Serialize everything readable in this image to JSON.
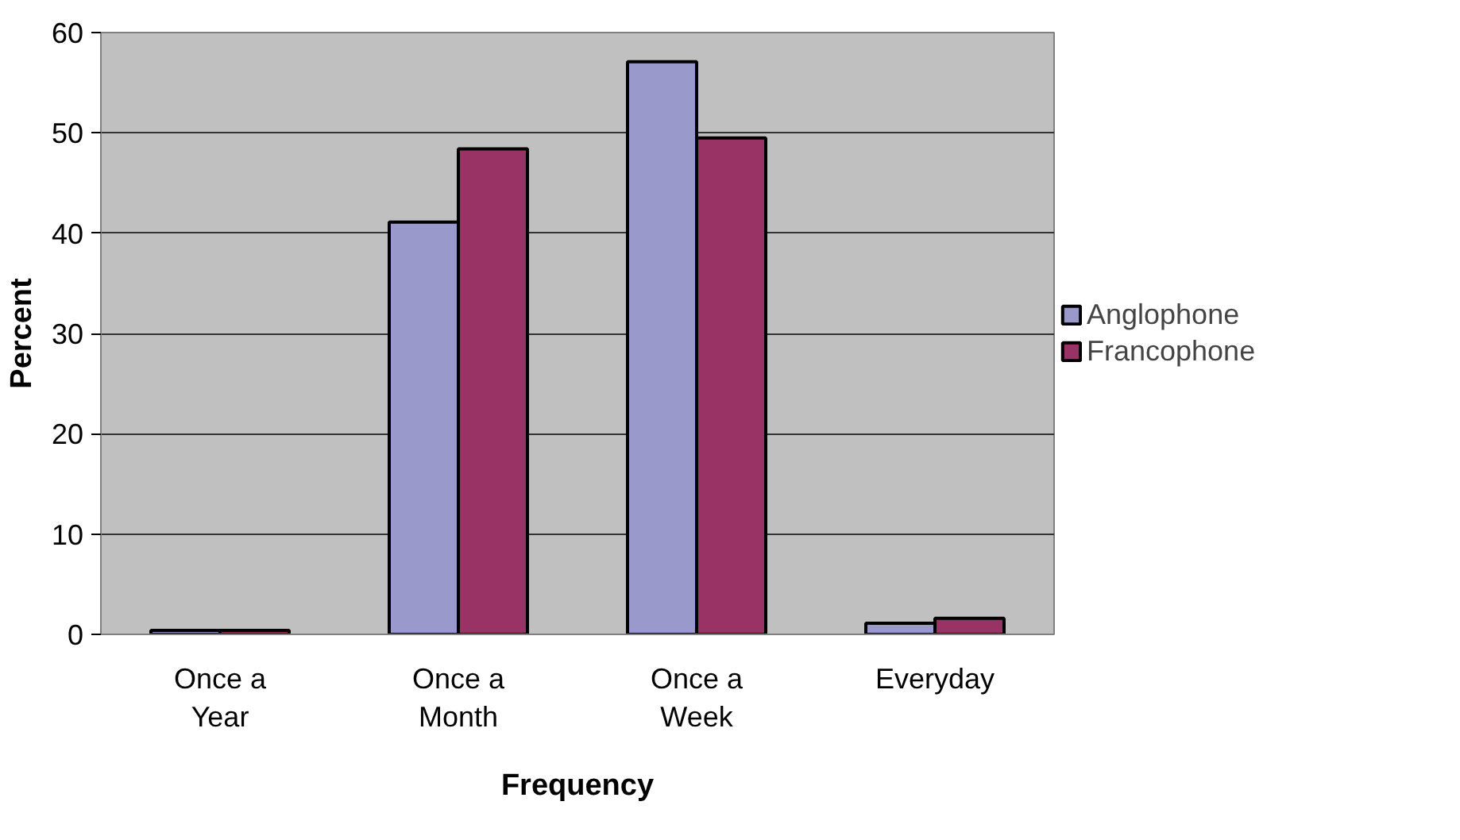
{
  "chart_data": {
    "type": "bar",
    "xlabel": "Frequency",
    "ylabel": "Percent",
    "categories": [
      "Once a\nYear",
      "Once a\nMonth",
      "Once a\nWeek",
      "Everyday"
    ],
    "series": [
      {
        "name": "Anglophone",
        "color": "#9999cc",
        "values": [
          0.4,
          41.1,
          57.1,
          1.1
        ]
      },
      {
        "name": "Francophone",
        "color": "#993366",
        "values": [
          0.4,
          48.4,
          49.5,
          1.6
        ]
      }
    ],
    "ylim": [
      0,
      60
    ],
    "yticks": [
      0,
      10,
      20,
      30,
      40,
      50,
      60
    ],
    "grid": "y",
    "legend": "right"
  }
}
